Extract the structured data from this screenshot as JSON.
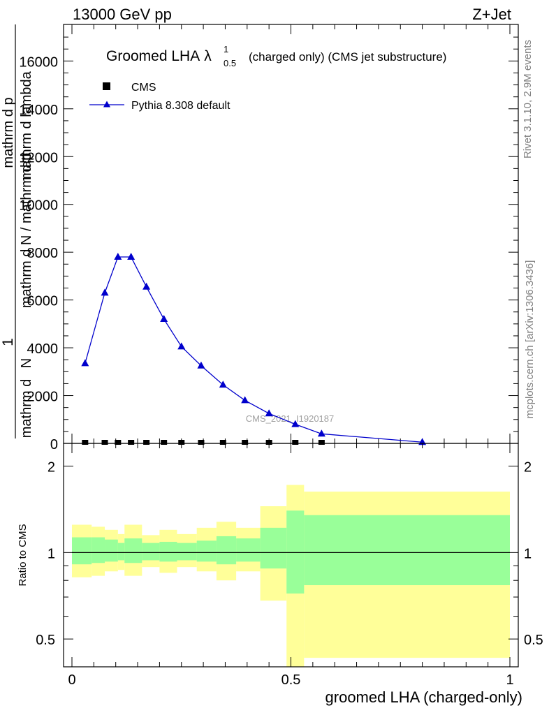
{
  "header": {
    "left": "13000 GeV pp",
    "right": "Z+Jet"
  },
  "side_labels": {
    "rivet": "Rivet 3.1.10,  2.9M events",
    "mcplots": "mcplots.cern.ch [arXiv:1306.3436]"
  },
  "watermark": "CMS_2021_I1920187",
  "chart_data": [
    {
      "type": "scatter",
      "title": {
        "main": "Groomed LHA",
        "lambda": "λ",
        "sup": "1",
        "sub": "0.5",
        "rest": "(charged only) (CMS jet substructure)"
      },
      "ylabel": {
        "one": "1",
        "denominator": "mathrm d N / mathrm d p",
        "numerator": "mathrm d",
        "numerator_N": "N",
        "rest": "mathrm d p",
        "lambda_part": "mathrm d lambda"
      },
      "yticks": [
        "0",
        "2000",
        "4000",
        "6000",
        "8000",
        "10000",
        "12000",
        "14000",
        "16000"
      ],
      "ylim": [
        0,
        17500
      ],
      "xlim": [
        -0.02,
        1.02
      ],
      "legend_position": "top-left",
      "series": [
        {
          "name": "CMS",
          "marker": "square",
          "color": "#000000",
          "x": [
            0.03,
            0.075,
            0.105,
            0.135,
            0.17,
            0.21,
            0.25,
            0.295,
            0.345,
            0.395,
            0.45,
            0.51,
            0.57
          ],
          "y": [
            0,
            0,
            0,
            0,
            0,
            0,
            0,
            0,
            0,
            0,
            0,
            0,
            0
          ]
        },
        {
          "name": "Pythia 8.308 default",
          "marker": "triangle",
          "color": "#0000cc",
          "x": [
            0.03,
            0.075,
            0.105,
            0.135,
            0.17,
            0.21,
            0.25,
            0.295,
            0.345,
            0.395,
            0.45,
            0.51,
            0.57,
            0.8
          ],
          "y": [
            3350,
            6300,
            7800,
            7800,
            6550,
            5200,
            4050,
            3250,
            2450,
            1800,
            1250,
            800,
            400,
            50
          ]
        }
      ]
    },
    {
      "type": "area",
      "ylabel": "Ratio to CMS",
      "xlabel": "groomed LHA (charged-only)",
      "xticks": [
        "0",
        "0.5",
        "1"
      ],
      "yticks": [
        "0.5",
        "1",
        "2"
      ],
      "y_scale": "log",
      "ylim": [
        0.4,
        2.4
      ],
      "xlim": [
        -0.02,
        1.02
      ],
      "reference_line": 1,
      "bins": [
        {
          "lo": 0.0,
          "hi": 0.045,
          "inner": [
            0.91,
            1.13
          ],
          "outer": [
            0.82,
            1.25
          ]
        },
        {
          "lo": 0.045,
          "hi": 0.075,
          "inner": [
            0.92,
            1.13
          ],
          "outer": [
            0.83,
            1.23
          ]
        },
        {
          "lo": 0.075,
          "hi": 0.105,
          "inner": [
            0.93,
            1.11
          ],
          "outer": [
            0.86,
            1.2
          ]
        },
        {
          "lo": 0.105,
          "hi": 0.12,
          "inner": [
            0.94,
            1.08
          ],
          "outer": [
            0.87,
            1.16
          ]
        },
        {
          "lo": 0.12,
          "hi": 0.16,
          "inner": [
            0.92,
            1.12
          ],
          "outer": [
            0.83,
            1.25
          ]
        },
        {
          "lo": 0.16,
          "hi": 0.2,
          "inner": [
            0.94,
            1.08
          ],
          "outer": [
            0.89,
            1.15
          ]
        },
        {
          "lo": 0.2,
          "hi": 0.24,
          "inner": [
            0.93,
            1.09
          ],
          "outer": [
            0.85,
            1.2
          ]
        },
        {
          "lo": 0.24,
          "hi": 0.285,
          "inner": [
            0.94,
            1.08
          ],
          "outer": [
            0.89,
            1.16
          ]
        },
        {
          "lo": 0.285,
          "hi": 0.33,
          "inner": [
            0.93,
            1.1
          ],
          "outer": [
            0.86,
            1.22
          ]
        },
        {
          "lo": 0.33,
          "hi": 0.375,
          "inner": [
            0.91,
            1.14
          ],
          "outer": [
            0.8,
            1.28
          ]
        },
        {
          "lo": 0.375,
          "hi": 0.43,
          "inner": [
            0.93,
            1.12
          ],
          "outer": [
            0.86,
            1.22
          ]
        },
        {
          "lo": 0.43,
          "hi": 0.49,
          "inner": [
            0.88,
            1.22
          ],
          "outer": [
            0.68,
            1.45
          ]
        },
        {
          "lo": 0.49,
          "hi": 0.53,
          "inner": [
            0.72,
            1.4
          ],
          "outer": [
            0.37,
            1.72
          ]
        },
        {
          "lo": 0.53,
          "hi": 1.0,
          "inner": [
            0.77,
            1.35
          ],
          "outer": [
            0.43,
            1.63
          ]
        }
      ]
    }
  ]
}
